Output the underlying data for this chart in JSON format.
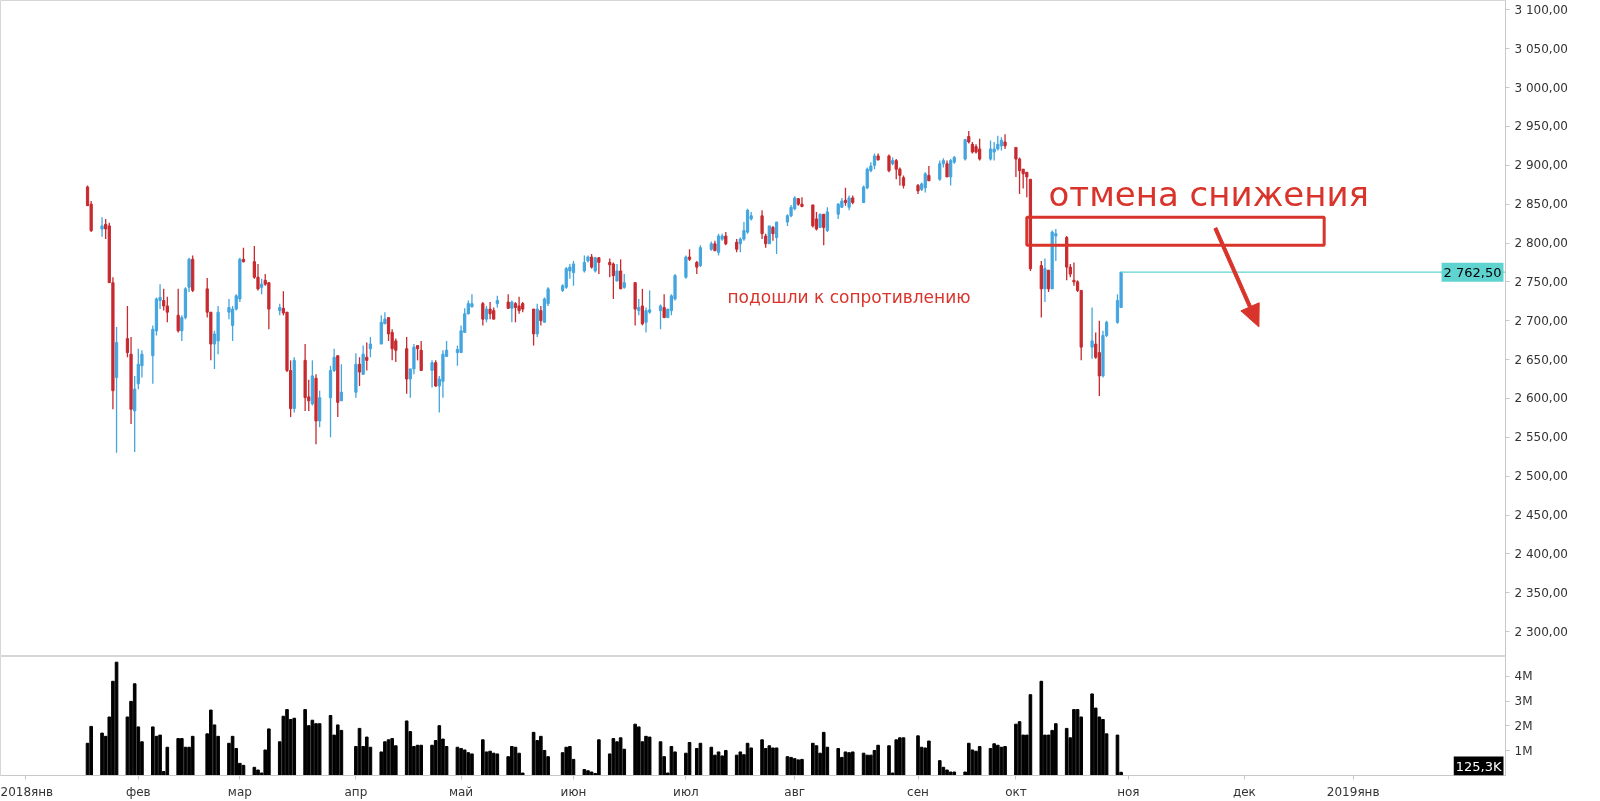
{
  "chart_data": [
    {
      "type": "candlestick",
      "x": [
        "2018-01-18",
        "2018-01-19",
        "2018-01-22",
        "2018-01-23",
        "2018-01-24",
        "2018-01-25",
        "2018-01-26",
        "2018-01-29",
        "2018-01-30",
        "2018-01-31",
        "2018-02-01",
        "2018-02-02",
        "2018-02-05",
        "2018-02-06",
        "2018-02-07",
        "2018-02-08",
        "2018-02-09",
        "2018-02-12",
        "2018-02-13",
        "2018-02-14",
        "2018-02-15",
        "2018-02-16",
        "2018-02-20",
        "2018-02-21",
        "2018-02-22",
        "2018-02-23",
        "2018-02-26",
        "2018-02-27",
        "2018-02-28",
        "2018-03-01",
        "2018-03-02",
        "2018-03-05",
        "2018-03-06",
        "2018-03-07",
        "2018-03-08",
        "2018-03-09",
        "2018-03-12",
        "2018-03-13",
        "2018-03-14",
        "2018-03-15",
        "2018-03-16",
        "2018-03-19",
        "2018-03-20",
        "2018-03-21",
        "2018-03-22",
        "2018-03-23",
        "2018-03-26",
        "2018-03-27",
        "2018-03-28",
        "2018-03-29",
        "2018-04-02",
        "2018-04-03",
        "2018-04-04",
        "2018-04-05",
        "2018-04-06",
        "2018-04-09",
        "2018-04-10",
        "2018-04-11",
        "2018-04-12",
        "2018-04-13",
        "2018-04-16",
        "2018-04-17",
        "2018-04-18",
        "2018-04-19",
        "2018-04-20",
        "2018-04-23",
        "2018-04-24",
        "2018-04-25",
        "2018-04-26",
        "2018-04-27",
        "2018-04-30",
        "2018-05-01",
        "2018-05-02",
        "2018-05-03",
        "2018-05-04",
        "2018-05-07",
        "2018-05-08",
        "2018-05-09",
        "2018-05-10",
        "2018-05-11",
        "2018-05-14",
        "2018-05-15",
        "2018-05-16",
        "2018-05-17",
        "2018-05-18",
        "2018-05-21",
        "2018-05-22",
        "2018-05-23",
        "2018-05-24",
        "2018-05-25",
        "2018-05-29",
        "2018-05-30",
        "2018-05-31",
        "2018-06-01",
        "2018-06-04",
        "2018-06-05",
        "2018-06-06",
        "2018-06-07",
        "2018-06-08",
        "2018-06-11",
        "2018-06-12",
        "2018-06-13",
        "2018-06-14",
        "2018-06-15",
        "2018-06-18",
        "2018-06-19",
        "2018-06-20",
        "2018-06-21",
        "2018-06-22",
        "2018-06-25",
        "2018-06-26",
        "2018-06-27",
        "2018-06-28",
        "2018-06-29",
        "2018-07-02",
        "2018-07-03",
        "2018-07-05",
        "2018-07-06",
        "2018-07-09",
        "2018-07-10",
        "2018-07-11",
        "2018-07-12",
        "2018-07-13",
        "2018-07-16",
        "2018-07-17",
        "2018-07-18",
        "2018-07-19",
        "2018-07-20",
        "2018-07-23",
        "2018-07-24",
        "2018-07-25",
        "2018-07-26",
        "2018-07-27",
        "2018-07-30",
        "2018-07-31",
        "2018-08-01",
        "2018-08-02",
        "2018-08-03",
        "2018-08-06",
        "2018-08-07",
        "2018-08-08",
        "2018-08-09",
        "2018-08-10",
        "2018-08-13",
        "2018-08-14",
        "2018-08-15",
        "2018-08-16",
        "2018-08-17",
        "2018-08-20",
        "2018-08-21",
        "2018-08-22",
        "2018-08-23",
        "2018-08-24",
        "2018-08-27",
        "2018-08-28",
        "2018-08-29",
        "2018-08-30",
        "2018-08-31",
        "2018-09-04",
        "2018-09-05",
        "2018-09-06",
        "2018-09-07",
        "2018-09-10",
        "2018-09-11",
        "2018-09-12",
        "2018-09-13",
        "2018-09-14",
        "2018-09-17",
        "2018-09-18",
        "2018-09-19",
        "2018-09-20",
        "2018-09-21",
        "2018-09-24",
        "2018-09-25",
        "2018-09-26",
        "2018-09-27",
        "2018-09-28",
        "2018-10-01",
        "2018-10-02",
        "2018-10-03",
        "2018-10-04",
        "2018-10-05",
        "2018-10-08",
        "2018-10-09",
        "2018-10-10",
        "2018-10-11",
        "2018-10-12",
        "2018-10-15",
        "2018-10-16",
        "2018-10-17",
        "2018-10-18",
        "2018-10-19",
        "2018-10-22",
        "2018-10-23",
        "2018-10-24",
        "2018-10-25",
        "2018-10-26",
        "2018-10-29",
        "2018-10-30"
      ],
      "ohlc": [
        [
          2872,
          2874,
          2848,
          2848
        ],
        [
          2850,
          2854,
          2814,
          2816
        ],
        [
          2818,
          2833,
          2808,
          2822
        ],
        [
          2824,
          2831,
          2805,
          2818
        ],
        [
          2822,
          2826,
          2749,
          2749
        ],
        [
          2749,
          2756,
          2586,
          2610
        ],
        [
          2627,
          2692,
          2530,
          2672
        ],
        [
          2677,
          2719,
          2653,
          2659
        ],
        [
          2657,
          2679,
          2567,
          2586
        ],
        [
          2584,
          2629,
          2531,
          2612
        ],
        [
          2619,
          2664,
          2612,
          2644
        ],
        [
          2642,
          2662,
          2627,
          2657
        ],
        [
          2655,
          2694,
          2619,
          2689
        ],
        [
          2687,
          2730,
          2681,
          2728
        ],
        [
          2726,
          2747,
          2715,
          2730
        ],
        [
          2726,
          2741,
          2713,
          2719
        ],
        [
          2719,
          2731,
          2698,
          2711
        ],
        [
          2707,
          2741,
          2685,
          2687
        ],
        [
          2687,
          2707,
          2674,
          2704
        ],
        [
          2704,
          2743,
          2702,
          2741
        ],
        [
          2743,
          2781,
          2737,
          2779
        ],
        [
          2779,
          2784,
          2737,
          2739
        ],
        [
          2741,
          2755,
          2704,
          2711
        ],
        [
          2711,
          2711,
          2649,
          2670
        ],
        [
          2670,
          2687,
          2638,
          2683
        ],
        [
          2674,
          2719,
          2657,
          2711
        ],
        [
          2711,
          2728,
          2702,
          2717
        ],
        [
          2694,
          2719,
          2674,
          2715
        ],
        [
          2715,
          2734,
          2713,
          2732
        ],
        [
          2728,
          2781,
          2724,
          2779
        ],
        [
          2779,
          2794,
          2775,
          2776
        ],
        [
          2776,
          2796,
          2754,
          2756
        ],
        [
          2756,
          2773,
          2739,
          2741
        ],
        [
          2743,
          2754,
          2734,
          2747
        ],
        [
          2752,
          2760,
          2745,
          2747
        ],
        [
          2749,
          2749,
          2689,
          2715
        ],
        [
          2713,
          2722,
          2707,
          2717
        ],
        [
          2716,
          2738,
          2707,
          2710
        ],
        [
          2711,
          2711,
          2634,
          2636
        ],
        [
          2636,
          2649,
          2576,
          2587
        ],
        [
          2587,
          2653,
          2582,
          2649
        ],
        [
          2649,
          2670,
          2584,
          2601
        ],
        [
          2602,
          2624,
          2584,
          2597
        ],
        [
          2593,
          2649,
          2591,
          2629
        ],
        [
          2626,
          2631,
          2541,
          2571
        ],
        [
          2571,
          2610,
          2563,
          2601
        ],
        [
          2601,
          2642,
          2550,
          2636
        ],
        [
          2636,
          2664,
          2634,
          2653
        ],
        [
          2655,
          2655,
          2576,
          2595
        ],
        [
          2597,
          2644,
          2597,
          2608
        ],
        [
          2608,
          2658,
          2601,
          2644
        ],
        [
          2644,
          2653,
          2616,
          2634
        ],
        [
          2631,
          2668,
          2631,
          2657
        ],
        [
          2653,
          2672,
          2636,
          2649
        ],
        [
          2664,
          2679,
          2653,
          2670
        ],
        [
          2670,
          2707,
          2670,
          2698
        ],
        [
          2696,
          2711,
          2696,
          2702
        ],
        [
          2704,
          2704,
          2674,
          2683
        ],
        [
          2685,
          2689,
          2649,
          2664
        ],
        [
          2674,
          2677,
          2647,
          2662
        ],
        [
          2664,
          2679,
          2606,
          2625
        ],
        [
          2625,
          2638,
          2601,
          2638
        ],
        [
          2638,
          2670,
          2631,
          2666
        ],
        [
          2668,
          2668,
          2649,
          2664
        ],
        [
          2662,
          2674,
          2636,
          2636
        ],
        [
          2636,
          2649,
          2614,
          2646
        ],
        [
          2646,
          2649,
          2615,
          2616
        ],
        [
          2616,
          2629,
          2582,
          2625
        ],
        [
          2622,
          2662,
          2601,
          2657
        ],
        [
          2654,
          2674,
          2654,
          2662
        ],
        [
          2659,
          2668,
          2642,
          2663
        ],
        [
          2659,
          2694,
          2659,
          2687
        ],
        [
          2685,
          2716,
          2685,
          2709
        ],
        [
          2709,
          2726,
          2708,
          2722
        ],
        [
          2718,
          2734,
          2717,
          2722
        ],
        [
          2722,
          2724,
          2694,
          2702
        ],
        [
          2702,
          2719,
          2698,
          2715
        ],
        [
          2715,
          2724,
          2702,
          2709
        ],
        [
          2713,
          2717,
          2702,
          2702
        ],
        [
          2722,
          2732,
          2717,
          2726
        ],
        [
          2724,
          2734,
          2715,
          2716
        ],
        [
          2716,
          2726,
          2698,
          2724
        ],
        [
          2722,
          2724,
          2698,
          2717
        ],
        [
          2719,
          2731,
          2709,
          2713
        ],
        [
          2722,
          2724,
          2711,
          2715
        ],
        [
          2715,
          2715,
          2668,
          2683
        ],
        [
          2683,
          2722,
          2679,
          2715
        ],
        [
          2713,
          2719,
          2694,
          2700
        ],
        [
          2698,
          2730,
          2698,
          2728
        ],
        [
          2722,
          2743,
          2719,
          2741
        ],
        [
          2739,
          2747,
          2737,
          2745
        ],
        [
          2743,
          2769,
          2741,
          2767
        ],
        [
          2764,
          2773,
          2754,
          2769
        ],
        [
          2762,
          2777,
          2745,
          2773
        ],
        [
          2764,
          2784,
          2762,
          2775
        ],
        [
          2777,
          2784,
          2775,
          2782
        ],
        [
          2782,
          2786,
          2767,
          2769
        ],
        [
          2764,
          2782,
          2762,
          2781
        ],
        [
          2781,
          2782,
          2760,
          2775
        ],
        [
          2775,
          2780,
          2756,
          2772
        ],
        [
          2773,
          2775,
          2728,
          2758
        ],
        [
          2751,
          2773,
          2751,
          2764
        ],
        [
          2764,
          2779,
          2741,
          2741
        ],
        [
          2743,
          2760,
          2741,
          2749
        ],
        [
          2749,
          2749,
          2694,
          2715
        ],
        [
          2713,
          2728,
          2707,
          2717
        ],
        [
          2719,
          2741,
          2694,
          2696
        ],
        [
          2698,
          2717,
          2685,
          2713
        ],
        [
          2711,
          2739,
          2709,
          2714
        ],
        [
          2713,
          2721,
          2689,
          2719
        ],
        [
          2717,
          2734,
          2704,
          2704
        ],
        [
          2704,
          2715,
          2704,
          2715
        ],
        [
          2713,
          2734,
          2707,
          2732
        ],
        [
          2728,
          2760,
          2726,
          2758
        ],
        [
          2756,
          2784,
          2754,
          2782
        ],
        [
          2782,
          2792,
          2777,
          2779
        ],
        [
          2775,
          2777,
          2760,
          2769
        ],
        [
          2771,
          2797,
          2769,
          2794
        ],
        [
          2792,
          2802,
          2790,
          2799
        ],
        [
          2799,
          2803,
          2790,
          2790
        ],
        [
          2788,
          2812,
          2784,
          2809
        ],
        [
          2805,
          2812,
          2803,
          2809
        ],
        [
          2809,
          2814,
          2797,
          2799
        ],
        [
          2801,
          2805,
          2788,
          2792
        ],
        [
          2799,
          2807,
          2788,
          2805
        ],
        [
          2805,
          2827,
          2803,
          2816
        ],
        [
          2814,
          2844,
          2812,
          2842
        ],
        [
          2831,
          2840,
          2829,
          2835
        ],
        [
          2835,
          2842,
          2805,
          2812
        ],
        [
          2809,
          2812,
          2794,
          2799
        ],
        [
          2799,
          2822,
          2799,
          2822
        ],
        [
          2820,
          2822,
          2803,
          2812
        ],
        [
          2807,
          2827,
          2786,
          2827
        ],
        [
          2827,
          2837,
          2822,
          2835
        ],
        [
          2835,
          2849,
          2833,
          2846
        ],
        [
          2844,
          2860,
          2842,
          2858
        ],
        [
          2857,
          2858,
          2848,
          2850
        ],
        [
          2850,
          2859,
          2846,
          2847
        ],
        [
          2849,
          2849,
          2820,
          2822
        ],
        [
          2831,
          2840,
          2816,
          2818
        ],
        [
          2820,
          2838,
          2820,
          2837
        ],
        [
          2837,
          2837,
          2797,
          2820
        ],
        [
          2816,
          2846,
          2814,
          2840
        ],
        [
          2837,
          2851,
          2831,
          2850
        ],
        [
          2846,
          2858,
          2845,
          2854
        ],
        [
          2855,
          2871,
          2848,
          2852
        ],
        [
          2846,
          2861,
          2842,
          2858
        ],
        [
          2858,
          2861,
          2850,
          2852
        ],
        [
          2852,
          2874,
          2852,
          2872
        ],
        [
          2871,
          2897,
          2869,
          2895
        ],
        [
          2893,
          2904,
          2891,
          2899
        ],
        [
          2900,
          2915,
          2895,
          2912
        ],
        [
          2912,
          2915,
          2906,
          2907
        ],
        [
          2912,
          2914,
          2891,
          2893
        ],
        [
          2902,
          2910,
          2900,
          2906
        ],
        [
          2906,
          2908,
          2882,
          2895
        ],
        [
          2895,
          2897,
          2874,
          2887
        ],
        [
          2884,
          2887,
          2870,
          2874
        ],
        [
          2874,
          2876,
          2863,
          2867
        ],
        [
          2869,
          2878,
          2867,
          2876
        ],
        [
          2871,
          2891,
          2865,
          2889
        ],
        [
          2887,
          2899,
          2880,
          2880
        ],
        [
          2882,
          2906,
          2880,
          2902
        ],
        [
          2902,
          2909,
          2897,
          2906
        ],
        [
          2902,
          2906,
          2885,
          2885
        ],
        [
          2885,
          2908,
          2874,
          2906
        ],
        [
          2904,
          2912,
          2902,
          2910
        ],
        [
          2908,
          2934,
          2906,
          2933
        ],
        [
          2937,
          2944,
          2928,
          2930
        ],
        [
          2927,
          2930,
          2915,
          2917
        ],
        [
          2924,
          2927,
          2915,
          2917
        ],
        [
          2921,
          2934,
          2906,
          2908
        ],
        [
          2908,
          2932,
          2906,
          2921
        ],
        [
          2917,
          2930,
          2906,
          2921
        ],
        [
          2921,
          2938,
          2919,
          2927
        ],
        [
          2925,
          2936,
          2919,
          2932
        ],
        [
          2930,
          2940,
          2921,
          2925
        ],
        [
          2923,
          2923,
          2885,
          2908
        ],
        [
          2908,
          2910,
          2863,
          2893
        ],
        [
          2895,
          2895,
          2870,
          2889
        ],
        [
          2891,
          2891,
          2859,
          2885
        ],
        [
          2882,
          2882,
          2764,
          2767
        ],
        [
          2771,
          2777,
          2704,
          2741
        ],
        [
          2741,
          2780,
          2724,
          2767
        ],
        [
          2765,
          2765,
          2737,
          2741
        ],
        [
          2741,
          2816,
          2741,
          2814
        ],
        [
          2809,
          2818,
          2777,
          2812
        ],
        [
          2807,
          2809,
          2752,
          2769
        ],
        [
          2769,
          2773,
          2756,
          2760
        ],
        [
          2752,
          2775,
          2745,
          2750
        ],
        [
          2750,
          2752,
          2737,
          2739
        ],
        [
          2739,
          2739,
          2649,
          2666
        ],
        [
          2666,
          2717,
          2651,
          2674
        ],
        [
          2670,
          2685,
          2651,
          2653
        ],
        [
          2659,
          2700,
          2603,
          2629
        ],
        [
          2629,
          2687,
          2627,
          2681
        ],
        [
          2681,
          2700,
          2679,
          2698
        ],
        [
          2698,
          2734,
          2696,
          2726
        ],
        [
          2717,
          2762.5,
          2717,
          2762.5
        ]
      ],
      "colors": [
        "#c62a2f",
        "#c62a2f",
        "#45a5de",
        "#c62a2f",
        "#c62a2f",
        "#c62a2f",
        "#45a5de",
        "#c62a2f",
        "#c62a2f",
        "#45a5de",
        "#45a5de",
        "#45a5de",
        "#45a5de",
        "#45a5de",
        "#45a5de",
        "#c62a2f",
        "#c62a2f",
        "#c62a2f",
        "#45a5de",
        "#45a5de",
        "#45a5de",
        "#c62a2f",
        "#c62a2f",
        "#c62a2f",
        "#45a5de",
        "#45a5de",
        "#45a5de",
        "#45a5de",
        "#45a5de",
        "#45a5de",
        "#c62a2f",
        "#c62a2f",
        "#c62a2f",
        "#45a5de",
        "#c62a2f",
        "#c62a2f",
        "#45a5de",
        "#c62a2f",
        "#c62a2f",
        "#c62a2f",
        "#45a5de",
        "#c62a2f",
        "#c62a2f",
        "#45a5de",
        "#c62a2f",
        "#45a5de",
        "#45a5de",
        "#45a5de",
        "#c62a2f",
        "#45a5de",
        "#45a5de",
        "#c62a2f",
        "#45a5de",
        "#c62a2f",
        "#45a5de",
        "#45a5de",
        "#45a5de",
        "#c62a2f",
        "#c62a2f",
        "#c62a2f",
        "#c62a2f",
        "#45a5de",
        "#45a5de",
        "#c62a2f",
        "#c62a2f",
        "#45a5de",
        "#c62a2f",
        "#45a5de",
        "#45a5de",
        "#45a5de",
        "#45a5de",
        "#45a5de",
        "#45a5de",
        "#45a5de",
        "#45a5de",
        "#c62a2f",
        "#45a5de",
        "#c62a2f",
        "#c62a2f",
        "#45a5de",
        "#c62a2f",
        "#45a5de",
        "#c62a2f",
        "#c62a2f",
        "#c62a2f",
        "#c62a2f",
        "#45a5de",
        "#c62a2f",
        "#45a5de",
        "#45a5de",
        "#45a5de",
        "#45a5de",
        "#45a5de",
        "#45a5de",
        "#45a5de",
        "#45a5de",
        "#c62a2f",
        "#45a5de",
        "#c62a2f",
        "#c62a2f",
        "#c62a2f",
        "#45a5de",
        "#c62a2f",
        "#45a5de",
        "#c62a2f",
        "#45a5de",
        "#c62a2f",
        "#45a5de",
        "#45a5de",
        "#45a5de",
        "#c62a2f",
        "#45a5de",
        "#45a5de",
        "#45a5de",
        "#45a5de",
        "#c62a2f",
        "#c62a2f",
        "#45a5de",
        "#45a5de",
        "#c62a2f",
        "#45a5de",
        "#45a5de",
        "#c62a2f",
        "#c62a2f",
        "#45a5de",
        "#45a5de",
        "#45a5de",
        "#45a5de",
        "#c62a2f",
        "#c62a2f",
        "#45a5de",
        "#c62a2f",
        "#45a5de",
        "#45a5de",
        "#45a5de",
        "#45a5de",
        "#c62a2f",
        "#c62a2f",
        "#c62a2f",
        "#c62a2f",
        "#45a5de",
        "#c62a2f",
        "#45a5de",
        "#45a5de",
        "#45a5de",
        "#c62a2f",
        "#45a5de",
        "#c62a2f",
        "#45a5de",
        "#45a5de",
        "#45a5de",
        "#45a5de",
        "#c62a2f",
        "#c62a2f",
        "#45a5de",
        "#c62a2f",
        "#c62a2f",
        "#c62a2f",
        "#c62a2f",
        "#45a5de",
        "#45a5de",
        "#c62a2f",
        "#45a5de",
        "#45a5de",
        "#c62a2f",
        "#45a5de",
        "#45a5de",
        "#45a5de",
        "#c62a2f",
        "#c62a2f",
        "#c62a2f",
        "#c62a2f",
        "#45a5de",
        "#45a5de",
        "#45a5de",
        "#45a5de",
        "#c62a2f",
        "#c62a2f",
        "#c62a2f",
        "#c62a2f",
        "#c62a2f",
        "#c62a2f",
        "#c62a2f",
        "#45a5de",
        "#c62a2f",
        "#45a5de",
        "#45a5de",
        "#c62a2f",
        "#c62a2f",
        "#c62a2f",
        "#c62a2f",
        "#c62a2f",
        "#45a5de",
        "#c62a2f",
        "#c62a2f",
        "#45a5de",
        "#45a5de",
        "#45a5de",
        "#45a5de"
      ],
      "xlim": [
        "2017-12-25",
        "2019-02-13"
      ],
      "ylim": [
        2268,
        3112
      ],
      "yticks": [
        {
          "value": 2300,
          "label": "2 300,00"
        },
        {
          "value": 2350,
          "label": "2 350,00"
        },
        {
          "value": 2400,
          "label": "2 400,00"
        },
        {
          "value": 2450,
          "label": "2 450,00"
        },
        {
          "value": 2500,
          "label": "2 500,00"
        },
        {
          "value": 2550,
          "label": "2 550,00"
        },
        {
          "value": 2600,
          "label": "2 600,00"
        },
        {
          "value": 2650,
          "label": "2 650,00"
        },
        {
          "value": 2700,
          "label": "2 700,00"
        },
        {
          "value": 2750,
          "label": "2 750,00"
        },
        {
          "value": 2800,
          "label": "2 800,00"
        },
        {
          "value": 2850,
          "label": "2 850,00"
        },
        {
          "value": 2900,
          "label": "2 900,00"
        },
        {
          "value": 2950,
          "label": "2 950,00"
        },
        {
          "value": 3000,
          "label": "3 000,00"
        },
        {
          "value": 3050,
          "label": "3 050,00"
        },
        {
          "value": 3100,
          "label": "3 100,00"
        }
      ],
      "tick_labels": "y",
      "ref_lines": [
        {
          "axis": "y",
          "value": 2762.5,
          "label": "2 762,50",
          "color": "#5fd3cf"
        }
      ],
      "annotations": [
        {
          "text": "отмена снижения",
          "x": "2018-10-04",
          "y": 2815
        },
        "подошли к сопротивлению"
      ]
    },
    {
      "type": "bar",
      "x": [
        "2018-01-18",
        "2018-01-19",
        "2018-01-22",
        "2018-01-23",
        "2018-01-24",
        "2018-01-25",
        "2018-01-26",
        "2018-01-29",
        "2018-01-30",
        "2018-01-31",
        "2018-02-01",
        "2018-02-02",
        "2018-02-05",
        "2018-02-06",
        "2018-02-07",
        "2018-02-08",
        "2018-02-09",
        "2018-02-12",
        "2018-02-13",
        "2018-02-14",
        "2018-02-15",
        "2018-02-16",
        "2018-02-20",
        "2018-02-21",
        "2018-02-22",
        "2018-02-23",
        "2018-02-26",
        "2018-02-27",
        "2018-02-28",
        "2018-03-01",
        "2018-03-02",
        "2018-03-05",
        "2018-03-06",
        "2018-03-07",
        "2018-03-08",
        "2018-03-09",
        "2018-03-12",
        "2018-03-13",
        "2018-03-14",
        "2018-03-15",
        "2018-03-16",
        "2018-03-19",
        "2018-03-20",
        "2018-03-21",
        "2018-03-22",
        "2018-03-23",
        "2018-03-26",
        "2018-03-27",
        "2018-03-28",
        "2018-03-29",
        "2018-04-02",
        "2018-04-03",
        "2018-04-04",
        "2018-04-05",
        "2018-04-06",
        "2018-04-09",
        "2018-04-10",
        "2018-04-11",
        "2018-04-12",
        "2018-04-13",
        "2018-04-16",
        "2018-04-17",
        "2018-04-18",
        "2018-04-19",
        "2018-04-20",
        "2018-04-23",
        "2018-04-24",
        "2018-04-25",
        "2018-04-26",
        "2018-04-27",
        "2018-04-30",
        "2018-05-01",
        "2018-05-02",
        "2018-05-03",
        "2018-05-04",
        "2018-05-07",
        "2018-05-08",
        "2018-05-09",
        "2018-05-10",
        "2018-05-11",
        "2018-05-14",
        "2018-05-15",
        "2018-05-16",
        "2018-05-17",
        "2018-05-18",
        "2018-05-21",
        "2018-05-22",
        "2018-05-23",
        "2018-05-24",
        "2018-05-25",
        "2018-05-29",
        "2018-05-30",
        "2018-05-31",
        "2018-06-01",
        "2018-06-04",
        "2018-06-05",
        "2018-06-06",
        "2018-06-07",
        "2018-06-08",
        "2018-06-11",
        "2018-06-12",
        "2018-06-13",
        "2018-06-14",
        "2018-06-15",
        "2018-06-18",
        "2018-06-19",
        "2018-06-20",
        "2018-06-21",
        "2018-06-22",
        "2018-06-25",
        "2018-06-26",
        "2018-06-27",
        "2018-06-28",
        "2018-06-29",
        "2018-07-02",
        "2018-07-03",
        "2018-07-05",
        "2018-07-06",
        "2018-07-09",
        "2018-07-10",
        "2018-07-11",
        "2018-07-12",
        "2018-07-13",
        "2018-07-16",
        "2018-07-17",
        "2018-07-18",
        "2018-07-19",
        "2018-07-20",
        "2018-07-23",
        "2018-07-24",
        "2018-07-25",
        "2018-07-26",
        "2018-07-27",
        "2018-07-30",
        "2018-07-31",
        "2018-08-01",
        "2018-08-02",
        "2018-08-03",
        "2018-08-06",
        "2018-08-07",
        "2018-08-08",
        "2018-08-09",
        "2018-08-10",
        "2018-08-13",
        "2018-08-14",
        "2018-08-15",
        "2018-08-16",
        "2018-08-17",
        "2018-08-20",
        "2018-08-21",
        "2018-08-22",
        "2018-08-23",
        "2018-08-24",
        "2018-08-27",
        "2018-08-28",
        "2018-08-29",
        "2018-08-30",
        "2018-08-31",
        "2018-09-04",
        "2018-09-05",
        "2018-09-06",
        "2018-09-07",
        "2018-09-10",
        "2018-09-11",
        "2018-09-12",
        "2018-09-13",
        "2018-09-14",
        "2018-09-17",
        "2018-09-18",
        "2018-09-19",
        "2018-09-20",
        "2018-09-21",
        "2018-09-24",
        "2018-09-25",
        "2018-09-26",
        "2018-09-27",
        "2018-09-28",
        "2018-10-01",
        "2018-10-02",
        "2018-10-03",
        "2018-10-04",
        "2018-10-05",
        "2018-10-08",
        "2018-10-09",
        "2018-10-10",
        "2018-10-11",
        "2018-10-12",
        "2018-10-15",
        "2018-10-16",
        "2018-10-17",
        "2018-10-18",
        "2018-10-19",
        "2018-10-22",
        "2018-10-23",
        "2018-10-24",
        "2018-10-25",
        "2018-10-26",
        "2018-10-29",
        "2018-10-30"
      ],
      "values": [
        1.3,
        1.98,
        1.71,
        1.58,
        2.36,
        3.8,
        4.57,
        2.36,
        2.99,
        3.7,
        1.96,
        1.36,
        1.96,
        1.58,
        1.63,
        0.16,
        1.14,
        1.49,
        1.49,
        1.14,
        1.14,
        1.58,
        1.68,
        2.64,
        2.04,
        1.58,
        1.3,
        1.58,
        1.09,
        0.49,
        0.41,
        0.33,
        0.22,
        0.1,
        1.03,
        1.88,
        1.36,
        2.39,
        2.66,
        2.26,
        2.31,
        2.66,
        2.01,
        2.23,
        2.09,
        2.09,
        2.42,
        1.63,
        2.04,
        1.82,
        1.17,
        1.9,
        1.17,
        1.55,
        1.14,
        0.95,
        1.36,
        1.44,
        1.49,
        1.2,
        2.2,
        1.77,
        1.17,
        1.22,
        1.22,
        1.22,
        1.41,
        2.01,
        1.47,
        1.17,
        1.14,
        1.09,
        1.03,
        0.92,
        0.87,
        1.44,
        0.95,
        0.98,
        0.9,
        0.87,
        0.76,
        1.17,
        1.14,
        0.9,
        0.1,
        1.74,
        1.41,
        1.58,
        1.01,
        0.76,
        0.92,
        1.14,
        1.17,
        0.65,
        0.24,
        0.19,
        0.14,
        0.08,
        1.44,
        0.87,
        1.49,
        1.36,
        1.52,
        1.06,
        2.07,
        1.96,
        1.36,
        1.58,
        1.55,
        1.36,
        0.76,
        0.1,
        1.17,
        0.95,
        0.9,
        1.33,
        1.09,
        1.3,
        1.14,
        0.82,
        0.95,
        0.79,
        1.01,
        0.82,
        0.95,
        0.84,
        1.3,
        1.11,
        1.44,
        1.09,
        1.2,
        1.11,
        1.11,
        0.76,
        0.73,
        0.68,
        0.63,
        0.65,
        1.3,
        1.2,
        0.9,
        1.74,
        1.14,
        1.09,
        0.73,
        0.95,
        0.92,
        0.95,
        0.9,
        0.82,
        0.82,
        1.01,
        1.22,
        1.2,
        0.1,
        1.44,
        1.52,
        1.52,
        1.6,
        1.14,
        1.11,
        1.39,
        0.6,
        0.33,
        0.22,
        0.14,
        0.14,
        0.14,
        1.3,
        1.03,
        0.98,
        1.17,
        1.09,
        1.28,
        1.22,
        1.14,
        1.17,
        2.07,
        2.17,
        1.63,
        1.63,
        3.26,
        3.8,
        1.63,
        1.63,
        1.82,
        2.09,
        1.9,
        1.52,
        2.66,
        2.66,
        2.36,
        3.29,
        2.72,
        2.36,
        2.26,
        1.68,
        1.63,
        0.13
      ],
      "color": "#000000",
      "xlim": [
        "2017-12-25",
        "2019-02-13"
      ],
      "xticks": [
        {
          "value": "2018-01-01",
          "label": "2018янв"
        },
        {
          "value": "2018-02-01",
          "label": "фев"
        },
        {
          "value": "2018-03-01",
          "label": "мар"
        },
        {
          "value": "2018-04-02",
          "label": "апр"
        },
        {
          "value": "2018-05-01",
          "label": "май"
        },
        {
          "value": "2018-06-01",
          "label": "июн"
        },
        {
          "value": "2018-07-02",
          "label": "июл"
        },
        {
          "value": "2018-08-01",
          "label": "авг"
        },
        {
          "value": "2018-09-04",
          "label": "сен"
        },
        {
          "value": "2018-10-01",
          "label": "окт"
        },
        {
          "value": "2018-11-01",
          "label": "ноя"
        },
        {
          "value": "2018-12-03",
          "label": "дек"
        },
        {
          "value": "2019-01-02",
          "label": "2019янв"
        }
      ],
      "ylim": [
        0,
        4.8
      ],
      "yticks": [
        {
          "value": 1,
          "label": "1M"
        },
        {
          "value": 2,
          "label": "2M"
        },
        {
          "value": 3,
          "label": "3M"
        },
        {
          "value": 4,
          "label": "4M"
        }
      ],
      "annotations": [
        "125,3K"
      ]
    }
  ]
}
